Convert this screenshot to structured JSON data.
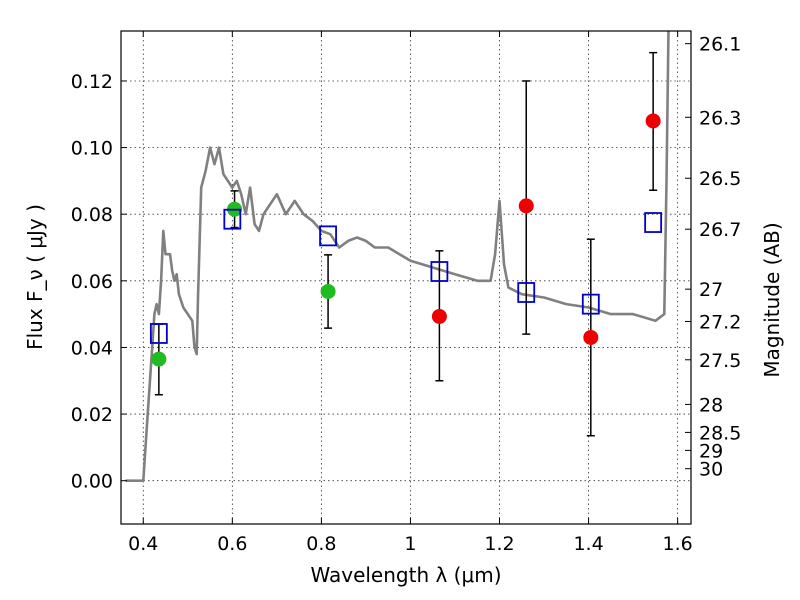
{
  "chart_data": {
    "type": "scatter",
    "xlabel": "Wavelength  λ (μm)",
    "ylabel": "Flux  F_ν  ( μJy )",
    "ylabel_right": "Magnitude (AB)",
    "xlim": [
      0.35,
      1.63
    ],
    "ylim": [
      -0.013,
      0.135
    ],
    "grid": true,
    "x_ticks": [
      0.4,
      0.6,
      0.8,
      1.0,
      1.2,
      1.4,
      1.6
    ],
    "x_tick_labels": [
      "0.4",
      "0.6",
      "0.8",
      "1",
      "1.2",
      "1.4",
      "1.6"
    ],
    "y_ticks": [
      0.0,
      0.02,
      0.04,
      0.06,
      0.08,
      0.1,
      0.12
    ],
    "y_tick_labels": [
      "0.00",
      "0.02",
      "0.04",
      "0.06",
      "0.08",
      "0.10",
      "0.12"
    ],
    "right_ticks": [
      {
        "label": "26.1",
        "flux": 0.1312
      },
      {
        "label": "26.3",
        "flux": 0.1091
      },
      {
        "label": "26.5",
        "flux": 0.0908
      },
      {
        "label": "26.7",
        "flux": 0.0755
      },
      {
        "label": "27",
        "flux": 0.0575
      },
      {
        "label": "27.2",
        "flux": 0.0478
      },
      {
        "label": "27.5",
        "flux": 0.0363
      },
      {
        "label": "28",
        "flux": 0.0229
      },
      {
        "label": "28.5",
        "flux": 0.0145
      },
      {
        "label": "29",
        "flux": 0.0091
      },
      {
        "label": "30",
        "flux": 0.0036
      }
    ],
    "series": [
      {
        "kind": "line",
        "color": "#808080",
        "x": [
          0.36,
          0.38,
          0.39,
          0.4,
          0.41,
          0.42,
          0.425,
          0.43,
          0.435,
          0.44,
          0.445,
          0.45,
          0.46,
          0.465,
          0.47,
          0.475,
          0.48,
          0.49,
          0.5,
          0.51,
          0.515,
          0.52,
          0.523,
          0.53,
          0.54,
          0.55,
          0.56,
          0.57,
          0.58,
          0.59,
          0.6,
          0.61,
          0.62,
          0.63,
          0.64,
          0.65,
          0.66,
          0.67,
          0.68,
          0.7,
          0.72,
          0.74,
          0.76,
          0.78,
          0.8,
          0.82,
          0.84,
          0.86,
          0.88,
          0.9,
          0.92,
          0.95,
          1.0,
          1.05,
          1.1,
          1.15,
          1.18,
          1.19,
          1.2,
          1.21,
          1.22,
          1.25,
          1.3,
          1.35,
          1.4,
          1.45,
          1.5,
          1.55,
          1.57,
          1.575,
          1.58,
          1.59,
          1.6
        ],
        "y": [
          0.0,
          0.0,
          0.0,
          0.0,
          0.02,
          0.04,
          0.05,
          0.053,
          0.05,
          0.06,
          0.075,
          0.068,
          0.068,
          0.063,
          0.06,
          0.062,
          0.056,
          0.052,
          0.05,
          0.048,
          0.04,
          0.038,
          0.055,
          0.088,
          0.093,
          0.1,
          0.095,
          0.1,
          0.092,
          0.09,
          0.088,
          0.09,
          0.086,
          0.08,
          0.088,
          0.077,
          0.075,
          0.08,
          0.082,
          0.086,
          0.08,
          0.084,
          0.08,
          0.078,
          0.075,
          0.074,
          0.07,
          0.072,
          0.073,
          0.072,
          0.07,
          0.07,
          0.066,
          0.064,
          0.062,
          0.06,
          0.06,
          0.068,
          0.084,
          0.065,
          0.058,
          0.056,
          0.055,
          0.053,
          0.052,
          0.05,
          0.05,
          0.048,
          0.05,
          0.09,
          0.14,
          0.14,
          0.14
        ]
      },
      {
        "kind": "points",
        "marker": "circle",
        "color": "#22bb22",
        "x": [
          0.435,
          0.605,
          0.815
        ],
        "y": [
          0.0365,
          0.0815,
          0.0568
        ],
        "err_low": [
          0.0107,
          0.0055,
          0.011
        ],
        "err_high": [
          0.0105,
          0.0055,
          0.011
        ]
      },
      {
        "kind": "points",
        "marker": "circle",
        "color": "#ee0000",
        "x": [
          1.065,
          1.26,
          1.405,
          1.545
        ],
        "y": [
          0.0493,
          0.0825,
          0.043,
          0.108
        ],
        "err_low": [
          0.0193,
          0.0385,
          0.0295,
          0.0208
        ],
        "err_high": [
          0.0197,
          0.0375,
          0.0295,
          0.0205
        ]
      },
      {
        "kind": "points",
        "marker": "square",
        "color": "#0000cc",
        "x": [
          0.435,
          0.6,
          0.815,
          1.065,
          1.26,
          1.405,
          1.545
        ],
        "y": [
          0.0442,
          0.0785,
          0.0735,
          0.0628,
          0.0565,
          0.053,
          0.0775
        ]
      }
    ]
  }
}
